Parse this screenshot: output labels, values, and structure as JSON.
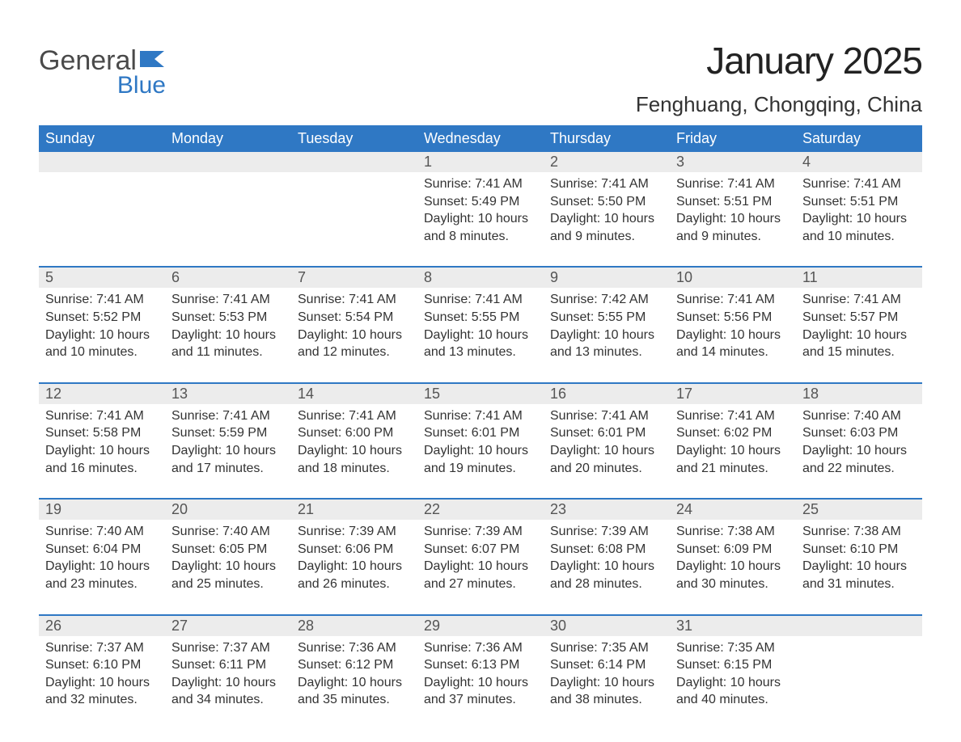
{
  "logo": {
    "main": "General",
    "sub": "Blue",
    "flag_color": "#2f78c4"
  },
  "header": {
    "month_title": "January 2025",
    "location": "Fenghuang, Chongqing, China"
  },
  "calendar": {
    "header_bg": "#2f78c4",
    "header_fg": "#ffffff",
    "daynum_bg": "#ececec",
    "row_divider": "#2f78c4",
    "text_color": "#333333",
    "day_names": [
      "Sunday",
      "Monday",
      "Tuesday",
      "Wednesday",
      "Thursday",
      "Friday",
      "Saturday"
    ],
    "weeks": [
      [
        null,
        null,
        null,
        {
          "n": "1",
          "sunrise": "Sunrise: 7:41 AM",
          "sunset": "Sunset: 5:49 PM",
          "dl1": "Daylight: 10 hours",
          "dl2": "and 8 minutes."
        },
        {
          "n": "2",
          "sunrise": "Sunrise: 7:41 AM",
          "sunset": "Sunset: 5:50 PM",
          "dl1": "Daylight: 10 hours",
          "dl2": "and 9 minutes."
        },
        {
          "n": "3",
          "sunrise": "Sunrise: 7:41 AM",
          "sunset": "Sunset: 5:51 PM",
          "dl1": "Daylight: 10 hours",
          "dl2": "and 9 minutes."
        },
        {
          "n": "4",
          "sunrise": "Sunrise: 7:41 AM",
          "sunset": "Sunset: 5:51 PM",
          "dl1": "Daylight: 10 hours",
          "dl2": "and 10 minutes."
        }
      ],
      [
        {
          "n": "5",
          "sunrise": "Sunrise: 7:41 AM",
          "sunset": "Sunset: 5:52 PM",
          "dl1": "Daylight: 10 hours",
          "dl2": "and 10 minutes."
        },
        {
          "n": "6",
          "sunrise": "Sunrise: 7:41 AM",
          "sunset": "Sunset: 5:53 PM",
          "dl1": "Daylight: 10 hours",
          "dl2": "and 11 minutes."
        },
        {
          "n": "7",
          "sunrise": "Sunrise: 7:41 AM",
          "sunset": "Sunset: 5:54 PM",
          "dl1": "Daylight: 10 hours",
          "dl2": "and 12 minutes."
        },
        {
          "n": "8",
          "sunrise": "Sunrise: 7:41 AM",
          "sunset": "Sunset: 5:55 PM",
          "dl1": "Daylight: 10 hours",
          "dl2": "and 13 minutes."
        },
        {
          "n": "9",
          "sunrise": "Sunrise: 7:42 AM",
          "sunset": "Sunset: 5:55 PM",
          "dl1": "Daylight: 10 hours",
          "dl2": "and 13 minutes."
        },
        {
          "n": "10",
          "sunrise": "Sunrise: 7:41 AM",
          "sunset": "Sunset: 5:56 PM",
          "dl1": "Daylight: 10 hours",
          "dl2": "and 14 minutes."
        },
        {
          "n": "11",
          "sunrise": "Sunrise: 7:41 AM",
          "sunset": "Sunset: 5:57 PM",
          "dl1": "Daylight: 10 hours",
          "dl2": "and 15 minutes."
        }
      ],
      [
        {
          "n": "12",
          "sunrise": "Sunrise: 7:41 AM",
          "sunset": "Sunset: 5:58 PM",
          "dl1": "Daylight: 10 hours",
          "dl2": "and 16 minutes."
        },
        {
          "n": "13",
          "sunrise": "Sunrise: 7:41 AM",
          "sunset": "Sunset: 5:59 PM",
          "dl1": "Daylight: 10 hours",
          "dl2": "and 17 minutes."
        },
        {
          "n": "14",
          "sunrise": "Sunrise: 7:41 AM",
          "sunset": "Sunset: 6:00 PM",
          "dl1": "Daylight: 10 hours",
          "dl2": "and 18 minutes."
        },
        {
          "n": "15",
          "sunrise": "Sunrise: 7:41 AM",
          "sunset": "Sunset: 6:01 PM",
          "dl1": "Daylight: 10 hours",
          "dl2": "and 19 minutes."
        },
        {
          "n": "16",
          "sunrise": "Sunrise: 7:41 AM",
          "sunset": "Sunset: 6:01 PM",
          "dl1": "Daylight: 10 hours",
          "dl2": "and 20 minutes."
        },
        {
          "n": "17",
          "sunrise": "Sunrise: 7:41 AM",
          "sunset": "Sunset: 6:02 PM",
          "dl1": "Daylight: 10 hours",
          "dl2": "and 21 minutes."
        },
        {
          "n": "18",
          "sunrise": "Sunrise: 7:40 AM",
          "sunset": "Sunset: 6:03 PM",
          "dl1": "Daylight: 10 hours",
          "dl2": "and 22 minutes."
        }
      ],
      [
        {
          "n": "19",
          "sunrise": "Sunrise: 7:40 AM",
          "sunset": "Sunset: 6:04 PM",
          "dl1": "Daylight: 10 hours",
          "dl2": "and 23 minutes."
        },
        {
          "n": "20",
          "sunrise": "Sunrise: 7:40 AM",
          "sunset": "Sunset: 6:05 PM",
          "dl1": "Daylight: 10 hours",
          "dl2": "and 25 minutes."
        },
        {
          "n": "21",
          "sunrise": "Sunrise: 7:39 AM",
          "sunset": "Sunset: 6:06 PM",
          "dl1": "Daylight: 10 hours",
          "dl2": "and 26 minutes."
        },
        {
          "n": "22",
          "sunrise": "Sunrise: 7:39 AM",
          "sunset": "Sunset: 6:07 PM",
          "dl1": "Daylight: 10 hours",
          "dl2": "and 27 minutes."
        },
        {
          "n": "23",
          "sunrise": "Sunrise: 7:39 AM",
          "sunset": "Sunset: 6:08 PM",
          "dl1": "Daylight: 10 hours",
          "dl2": "and 28 minutes."
        },
        {
          "n": "24",
          "sunrise": "Sunrise: 7:38 AM",
          "sunset": "Sunset: 6:09 PM",
          "dl1": "Daylight: 10 hours",
          "dl2": "and 30 minutes."
        },
        {
          "n": "25",
          "sunrise": "Sunrise: 7:38 AM",
          "sunset": "Sunset: 6:10 PM",
          "dl1": "Daylight: 10 hours",
          "dl2": "and 31 minutes."
        }
      ],
      [
        {
          "n": "26",
          "sunrise": "Sunrise: 7:37 AM",
          "sunset": "Sunset: 6:10 PM",
          "dl1": "Daylight: 10 hours",
          "dl2": "and 32 minutes."
        },
        {
          "n": "27",
          "sunrise": "Sunrise: 7:37 AM",
          "sunset": "Sunset: 6:11 PM",
          "dl1": "Daylight: 10 hours",
          "dl2": "and 34 minutes."
        },
        {
          "n": "28",
          "sunrise": "Sunrise: 7:36 AM",
          "sunset": "Sunset: 6:12 PM",
          "dl1": "Daylight: 10 hours",
          "dl2": "and 35 minutes."
        },
        {
          "n": "29",
          "sunrise": "Sunrise: 7:36 AM",
          "sunset": "Sunset: 6:13 PM",
          "dl1": "Daylight: 10 hours",
          "dl2": "and 37 minutes."
        },
        {
          "n": "30",
          "sunrise": "Sunrise: 7:35 AM",
          "sunset": "Sunset: 6:14 PM",
          "dl1": "Daylight: 10 hours",
          "dl2": "and 38 minutes."
        },
        {
          "n": "31",
          "sunrise": "Sunrise: 7:35 AM",
          "sunset": "Sunset: 6:15 PM",
          "dl1": "Daylight: 10 hours",
          "dl2": "and 40 minutes."
        },
        null
      ]
    ]
  }
}
